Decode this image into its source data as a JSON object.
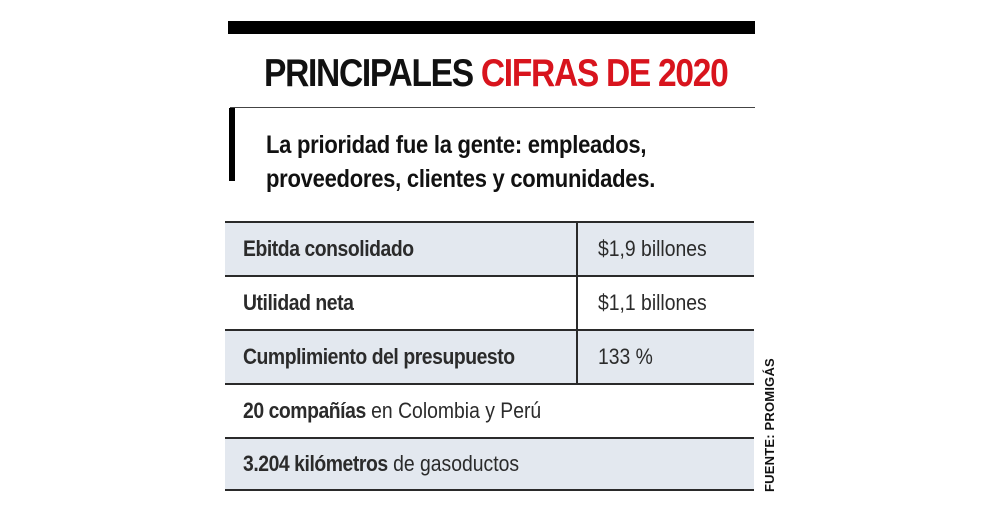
{
  "header": {
    "title_black": "PRINCIPALES",
    "title_red": "CIFRAS DE 2020",
    "subtitle_line1": "La prioridad fue la gente: empleados,",
    "subtitle_line2": "proveedores, clientes y comunidades."
  },
  "colors": {
    "accent_red": "#d8141d",
    "row_shade": "#e3e8ef",
    "text": "#2b2b2b"
  },
  "table": {
    "rows": [
      {
        "label": "Ebitda consolidado",
        "value": "$1,9 billones"
      },
      {
        "label": "Utilidad neta",
        "value": "$1,1 billones"
      },
      {
        "label": "Cumplimiento del presupuesto",
        "value": "133 %"
      }
    ],
    "facts": [
      {
        "bold": "20 compañías",
        "rest": " en Colombia y Perú"
      },
      {
        "bold": "3.204 kilómetros",
        "rest": " de gasoductos"
      }
    ]
  },
  "source": "FUENTE: PROMIGÁS"
}
